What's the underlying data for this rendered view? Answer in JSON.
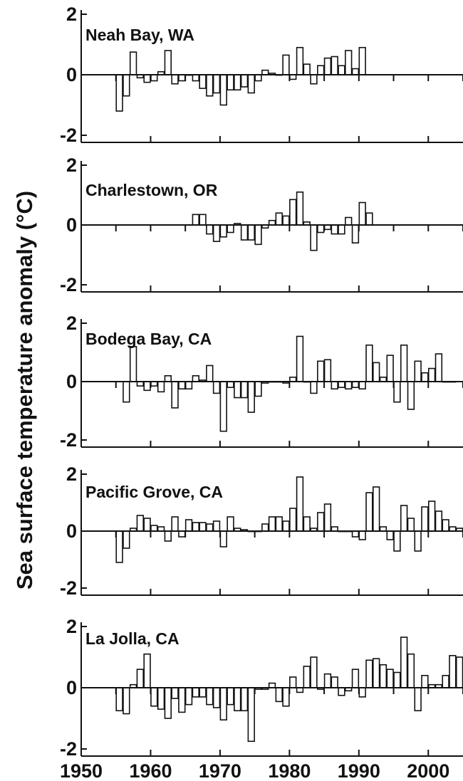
{
  "chart_data": {
    "type": "bar",
    "ylabel": "Sea surface temperature anomaly (°C)",
    "xlim": [
      1950,
      2005
    ],
    "x_ticks": [
      "1950",
      "1960",
      "1970",
      "1980",
      "1990",
      "2000"
    ],
    "panels": [
      {
        "name": "Neah Bay, WA",
        "ylim": [
          -2,
          2
        ],
        "y_ticks": [
          "2",
          "0",
          "-2"
        ],
        "years": [
          1955,
          1956,
          1957,
          1958,
          1959,
          1960,
          1961,
          1962,
          1963,
          1964,
          1965,
          1966,
          1967,
          1968,
          1969,
          1970,
          1971,
          1972,
          1973,
          1974,
          1975,
          1976,
          1977,
          1978,
          1979,
          1980,
          1981,
          1982,
          1983,
          1984,
          1985,
          1986,
          1987,
          1988,
          1989,
          1990
        ],
        "values": [
          -1.2,
          -0.7,
          0.75,
          -0.1,
          -0.25,
          -0.2,
          0.1,
          0.8,
          -0.3,
          -0.2,
          0.0,
          -0.2,
          -0.45,
          -0.7,
          -0.6,
          -1.0,
          -0.5,
          -0.5,
          -0.4,
          -0.6,
          -0.2,
          0.15,
          0.05,
          0.0,
          0.65,
          -0.15,
          0.9,
          0.35,
          -0.3,
          0.3,
          0.55,
          0.6,
          0.3,
          0.8,
          0.2,
          0.9
        ]
      },
      {
        "name": "Charlestown, OR",
        "ylim": [
          -2,
          2
        ],
        "y_ticks": [
          "2",
          "0",
          "-2"
        ],
        "years": [
          1966,
          1967,
          1968,
          1969,
          1970,
          1971,
          1972,
          1973,
          1974,
          1975,
          1976,
          1977,
          1978,
          1979,
          1980,
          1981,
          1982,
          1983,
          1984,
          1985,
          1986,
          1987,
          1988,
          1989,
          1990,
          1991
        ],
        "values": [
          0.35,
          0.35,
          -0.3,
          -0.55,
          -0.4,
          -0.25,
          0.05,
          -0.5,
          -0.5,
          -0.65,
          -0.1,
          0.15,
          0.4,
          0.3,
          0.85,
          1.1,
          0.1,
          -0.85,
          -0.25,
          -0.15,
          -0.3,
          -0.3,
          0.25,
          -0.6,
          0.75,
          0.4
        ]
      },
      {
        "name": "Bodega Bay, CA",
        "ylim": [
          -2,
          2
        ],
        "y_ticks": [
          "2",
          "0",
          "-2"
        ],
        "years": [
          1956,
          1957,
          1958,
          1959,
          1960,
          1961,
          1962,
          1963,
          1964,
          1965,
          1966,
          1967,
          1968,
          1969,
          1970,
          1971,
          1972,
          1973,
          1974,
          1975,
          1976,
          1977,
          1978,
          1979,
          1980,
          1981,
          1982,
          1983,
          1984,
          1985,
          1986,
          1987,
          1988,
          1989,
          1990,
          1991,
          1992,
          1993,
          1994,
          1995,
          1996,
          1997,
          1998,
          1999,
          2000,
          2001,
          2002,
          2003
        ],
        "values": [
          -0.7,
          1.2,
          -0.15,
          -0.3,
          -0.15,
          -0.35,
          0.2,
          -0.9,
          -0.25,
          -0.25,
          0.2,
          0.05,
          0.55,
          -0.4,
          -1.7,
          -0.2,
          -0.55,
          -0.55,
          -1.05,
          -0.5,
          -0.05,
          0.0,
          0.0,
          -0.05,
          0.15,
          1.55,
          0.0,
          -0.4,
          0.7,
          0.75,
          -0.25,
          -0.2,
          -0.25,
          -0.2,
          -0.25,
          1.25,
          0.65,
          0.15,
          0.9,
          -0.7,
          1.25,
          -0.95,
          0.7,
          0.3,
          0.45,
          0.95,
          0.0,
          0.0
        ]
      },
      {
        "name": "Pacific Grove, CA",
        "ylim": [
          -2,
          2
        ],
        "y_ticks": [
          "2",
          "0",
          "-2"
        ],
        "years": [
          1955,
          1956,
          1957,
          1958,
          1959,
          1960,
          1961,
          1962,
          1963,
          1964,
          1965,
          1966,
          1967,
          1968,
          1969,
          1970,
          1971,
          1972,
          1973,
          1974,
          1975,
          1976,
          1977,
          1978,
          1979,
          1980,
          1981,
          1982,
          1983,
          1984,
          1985,
          1986,
          1987,
          1988,
          1989,
          1990,
          1991,
          1992,
          1993,
          1994,
          1995,
          1996,
          1997,
          1998,
          1999,
          2000,
          2001,
          2002,
          2003,
          2004,
          2005
        ],
        "values": [
          -1.1,
          -0.6,
          0.1,
          0.55,
          0.45,
          0.2,
          0.15,
          -0.35,
          0.5,
          -0.2,
          0.4,
          0.3,
          0.3,
          0.25,
          0.35,
          -0.55,
          0.5,
          0.1,
          0.05,
          0.0,
          0.0,
          0.25,
          0.5,
          0.5,
          0.35,
          0.8,
          1.9,
          0.5,
          0.1,
          0.65,
          0.95,
          0.15,
          0.0,
          0.0,
          -0.2,
          -0.3,
          1.35,
          1.55,
          0.15,
          -0.3,
          -0.7,
          0.9,
          0.45,
          -0.7,
          0.85,
          1.05,
          0.7,
          0.4,
          0.15,
          0.1,
          0.0
        ]
      },
      {
        "name": "La Jolla, CA",
        "ylim": [
          -2,
          2
        ],
        "y_ticks": [
          "2",
          "0",
          "-2"
        ],
        "years": [
          1955,
          1956,
          1957,
          1958,
          1959,
          1960,
          1961,
          1962,
          1963,
          1964,
          1965,
          1966,
          1967,
          1968,
          1969,
          1970,
          1971,
          1972,
          1973,
          1974,
          1975,
          1976,
          1977,
          1978,
          1979,
          1980,
          1981,
          1982,
          1983,
          1984,
          1985,
          1986,
          1987,
          1988,
          1989,
          1990,
          1991,
          1992,
          1993,
          1994,
          1995,
          1996,
          1997,
          1998,
          1999,
          2000,
          2001,
          2002,
          2003,
          2004
        ],
        "values": [
          -0.75,
          -0.85,
          0.1,
          0.6,
          1.1,
          -0.6,
          -0.7,
          -1.0,
          -0.35,
          -0.8,
          -0.55,
          -0.3,
          -0.3,
          -0.55,
          -0.65,
          -1.05,
          -0.55,
          -0.75,
          -0.75,
          -1.75,
          -0.05,
          -0.05,
          0.15,
          -0.45,
          -0.6,
          0.35,
          -0.15,
          0.7,
          1.0,
          -0.05,
          0.45,
          0.35,
          -0.25,
          -0.1,
          0.6,
          -0.3,
          0.9,
          0.95,
          0.75,
          0.6,
          0.5,
          1.65,
          1.1,
          -0.75,
          0.4,
          0.1,
          0.1,
          0.4,
          1.05,
          1.0
        ]
      }
    ]
  }
}
